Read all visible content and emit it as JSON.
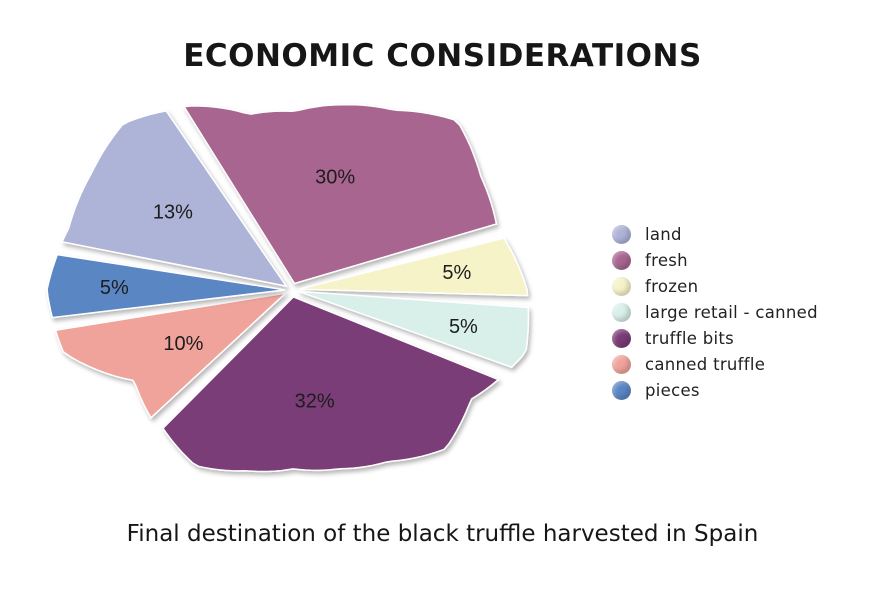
{
  "title": "ECONOMIC CONSIDERATIONS",
  "subtitle": "Final destination of the black truffle harvested in Spain",
  "chart_data": {
    "type": "pie",
    "title": "ECONOMIC CONSIDERATIONS",
    "legend_position": "right",
    "slices": [
      {
        "label": "land",
        "value": 13,
        "value_label": "13%",
        "color": "#aeb3d8"
      },
      {
        "label": "fresh",
        "value": 30,
        "value_label": "30%",
        "color": "#a86590"
      },
      {
        "label": "frozen",
        "value": 5,
        "value_label": "5%",
        "color": "#f6f3c9"
      },
      {
        "label": "large retail - canned",
        "value": 5,
        "value_label": "5%",
        "color": "#d9efe9"
      },
      {
        "label": "truffle bits",
        "value": 32,
        "value_label": "32%",
        "color": "#7a3c77"
      },
      {
        "label": "canned truffle",
        "value": 10,
        "value_label": "10%",
        "color": "#efa39b"
      },
      {
        "label": "pieces",
        "value": 5,
        "value_label": "5%",
        "color": "#5a86c4"
      }
    ]
  }
}
